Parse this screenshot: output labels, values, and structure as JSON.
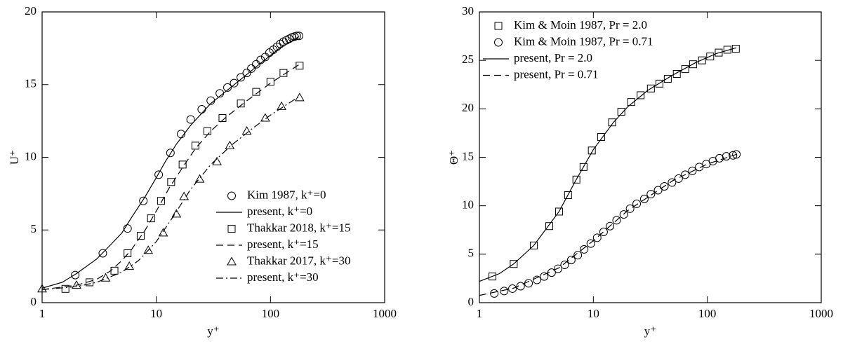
{
  "chart_data": [
    {
      "type": "line",
      "x_label": "y⁺",
      "y_label": "U⁺",
      "xlim": [
        1,
        1000
      ],
      "xticks": [
        1,
        10,
        100,
        1000
      ],
      "xlog": true,
      "ylim": [
        0,
        20
      ],
      "yticks": [
        0,
        5,
        10,
        15,
        20
      ],
      "legend": "lower right",
      "series": [
        {
          "name": "Kim 1987, k⁺=0",
          "color": "#000000",
          "marker": "circle",
          "dash": "none",
          "x": [
            1.95,
            3.4,
            5.6,
            7.7,
            10.5,
            13.3,
            16.5,
            20,
            25,
            30,
            36,
            42,
            48,
            55,
            62,
            68,
            75,
            82,
            90,
            98,
            106,
            114,
            122,
            130,
            138,
            146,
            154,
            162,
            170,
            178
          ],
          "values": [
            1.9,
            3.4,
            5.1,
            7.0,
            8.8,
            10.3,
            11.6,
            12.6,
            13.3,
            13.9,
            14.4,
            14.8,
            15.1,
            15.5,
            15.8,
            16.1,
            16.4,
            16.7,
            16.9,
            17.2,
            17.4,
            17.6,
            17.8,
            17.95,
            18.05,
            18.15,
            18.25,
            18.3,
            18.35,
            18.35
          ]
        },
        {
          "name": "present, k⁺=0",
          "color": "#000000",
          "marker": "none",
          "dash": "solid",
          "x": [
            1,
            1.5,
            2,
            3,
            4,
            5,
            6,
            7,
            8,
            10,
            12,
            15,
            20,
            30,
            50,
            80,
            120,
            178
          ],
          "values": [
            1.0,
            1.4,
            2.0,
            3.0,
            4.0,
            4.8,
            5.8,
            6.6,
            7.3,
            8.6,
            9.7,
            10.9,
            12.2,
            13.7,
            15.1,
            16.4,
            17.5,
            18.3
          ]
        },
        {
          "name": "Thakkar 2018, k⁺=15",
          "color": "#000000",
          "marker": "square",
          "dash": "none",
          "x": [
            1.6,
            2.6,
            4.3,
            5.6,
            7.3,
            9,
            11,
            13.5,
            17,
            22,
            28,
            38,
            55,
            75,
            100,
            130,
            180
          ],
          "values": [
            0.95,
            1.4,
            2.2,
            3.4,
            4.6,
            5.8,
            7.0,
            8.3,
            9.5,
            10.8,
            11.8,
            12.7,
            13.7,
            14.5,
            15.2,
            15.8,
            16.3
          ]
        },
        {
          "name": "present, k⁺=15",
          "color": "#000000",
          "marker": "none",
          "dash": "dashed",
          "x": [
            1,
            2,
            3,
            4,
            5,
            6,
            8,
            10,
            13,
            17,
            22,
            30,
            40,
            60,
            100,
            180
          ],
          "values": [
            0.9,
            1.2,
            1.6,
            2.2,
            2.9,
            3.6,
            5.0,
            6.3,
            7.9,
            9.3,
            10.6,
            11.8,
            12.7,
            13.8,
            15.1,
            16.4
          ]
        },
        {
          "name": "Thakkar 2017, k⁺=30",
          "color": "#000000",
          "marker": "triangle",
          "dash": "none",
          "x": [
            1,
            2,
            3.6,
            5.8,
            8.5,
            11.5,
            15,
            17.5,
            24,
            34,
            44,
            62,
            90,
            125,
            180
          ],
          "values": [
            0.95,
            1.2,
            1.7,
            2.5,
            3.6,
            4.8,
            6.1,
            7.3,
            8.5,
            9.7,
            10.8,
            11.8,
            12.7,
            13.5,
            14.1
          ]
        },
        {
          "name": "present, k⁺=30",
          "color": "#000000",
          "marker": "none",
          "dash": "dashdot",
          "x": [
            1,
            2,
            3,
            5,
            7,
            10,
            14,
            20,
            30,
            45,
            70,
            100,
            180
          ],
          "values": [
            0.9,
            1.1,
            1.4,
            2.1,
            2.9,
            4.2,
            5.9,
            7.8,
            9.5,
            10.8,
            12.0,
            12.9,
            14.2
          ]
        }
      ]
    },
    {
      "type": "line",
      "x_label": "y⁺",
      "y_label": "Θ⁺",
      "xlim": [
        1,
        1000
      ],
      "xticks": [
        1,
        10,
        100,
        1000
      ],
      "xlog": true,
      "ylim": [
        0,
        30
      ],
      "yticks": [
        0,
        5,
        10,
        15,
        20,
        25,
        30
      ],
      "legend": "upper left",
      "series": [
        {
          "name": "Kim & Moin 1987, Pr = 2.0",
          "color": "#000000",
          "marker": "square",
          "dash": "none",
          "x": [
            1.3,
            2,
            3,
            4.1,
            5,
            6,
            7.1,
            8.2,
            9.7,
            11.7,
            14.6,
            17.6,
            21.5,
            26,
            32,
            38,
            45,
            54,
            64,
            75,
            90,
            106,
            126,
            150,
            178
          ],
          "values": [
            2.7,
            4.0,
            5.9,
            7.9,
            9.4,
            11.1,
            12.7,
            14.0,
            15.7,
            17.1,
            18.6,
            19.7,
            20.7,
            21.4,
            22.1,
            22.6,
            23.1,
            23.6,
            24.1,
            24.6,
            25.0,
            25.4,
            25.8,
            26.1,
            26.2
          ]
        },
        {
          "name": "Kim & Moin 1987, Pr = 0.71",
          "color": "#000000",
          "marker": "circle",
          "dash": "none",
          "x": [
            1.35,
            1.65,
            1.95,
            2.3,
            2.7,
            3.2,
            3.7,
            4.3,
            4.9,
            5.6,
            6.4,
            7.3,
            8.3,
            9.5,
            10.8,
            12.3,
            14,
            16,
            18.5,
            21,
            24,
            28,
            32,
            37,
            42,
            49,
            56,
            64,
            74,
            85,
            98,
            112,
            128,
            147,
            168,
            180
          ],
          "values": [
            0.95,
            1.2,
            1.45,
            1.7,
            2.0,
            2.35,
            2.7,
            3.1,
            3.5,
            3.9,
            4.4,
            4.9,
            5.5,
            6.1,
            6.7,
            7.3,
            7.9,
            8.5,
            9.1,
            9.7,
            10.2,
            10.7,
            11.2,
            11.6,
            12.0,
            12.4,
            12.8,
            13.2,
            13.6,
            14.0,
            14.3,
            14.6,
            14.9,
            15.1,
            15.2,
            15.3
          ]
        },
        {
          "name": "present, Pr = 2.0",
          "color": "#000000",
          "marker": "none",
          "dash": "solid",
          "x": [
            1,
            1.5,
            2,
            3,
            5,
            7,
            10,
            15,
            20,
            30,
            50,
            80,
            120,
            180
          ],
          "values": [
            2.2,
            3.0,
            4.0,
            5.9,
            9.4,
            12.6,
            15.8,
            18.6,
            20.2,
            21.9,
            23.5,
            24.8,
            25.7,
            26.3
          ]
        },
        {
          "name": "present, Pr = 0.71",
          "color": "#000000",
          "marker": "none",
          "dash": "dashed",
          "x": [
            1,
            2,
            5,
            10,
            20,
            50,
            100,
            180
          ],
          "values": [
            0.75,
            1.5,
            3.6,
            6.4,
            9.5,
            12.6,
            14.3,
            15.3
          ]
        }
      ]
    }
  ]
}
